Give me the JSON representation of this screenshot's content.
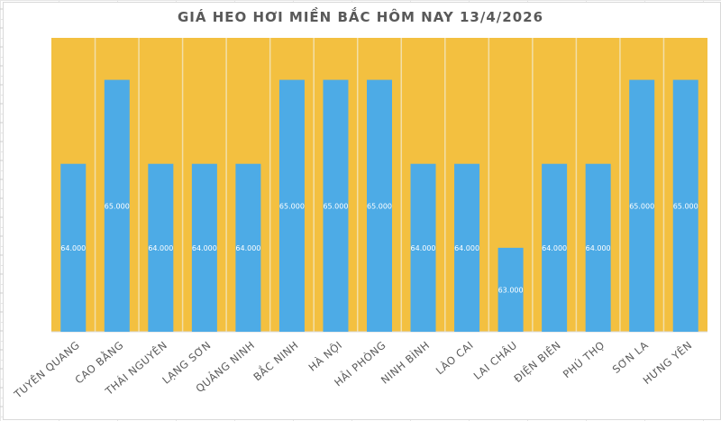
{
  "chart_data": {
    "type": "bar",
    "title": "GIÁ HEO HƠI MIỀN BẮC HÔM NAY 13/4/2026",
    "categories": [
      "TUYÊN QUANG",
      "CAO BẰNG",
      "THÁI NGUYÊN",
      "LẠNG SƠN",
      "QUẢNG NINH",
      "BẮC NINH",
      "HÀ NỘI",
      "HẢI PHÒNG",
      "NINH BÌNH",
      "LÀO CAI",
      "LAI CHÂU",
      "ĐIỆN BIÊN",
      "PHÚ THỌ",
      "SƠN LA",
      "HƯNG YÊN"
    ],
    "values": [
      64000,
      65000,
      64000,
      64000,
      64000,
      65000,
      65000,
      65000,
      64000,
      64000,
      63000,
      64000,
      64000,
      65000,
      65000
    ],
    "data_labels": [
      "64.000",
      "65.000",
      "64.000",
      "64.000",
      "64.000",
      "65.000",
      "65.000",
      "65.000",
      "64.000",
      "64.000",
      "63.000",
      "64.000",
      "64.000",
      "65.000",
      "65.000"
    ],
    "ylim": [
      62000,
      65500
    ],
    "grid": false,
    "legend": "none",
    "colors": {
      "bar": "#4dabe6",
      "plot_background": "#f3c040",
      "category_divider": "#f2dfa8",
      "label": "#595959"
    }
  }
}
